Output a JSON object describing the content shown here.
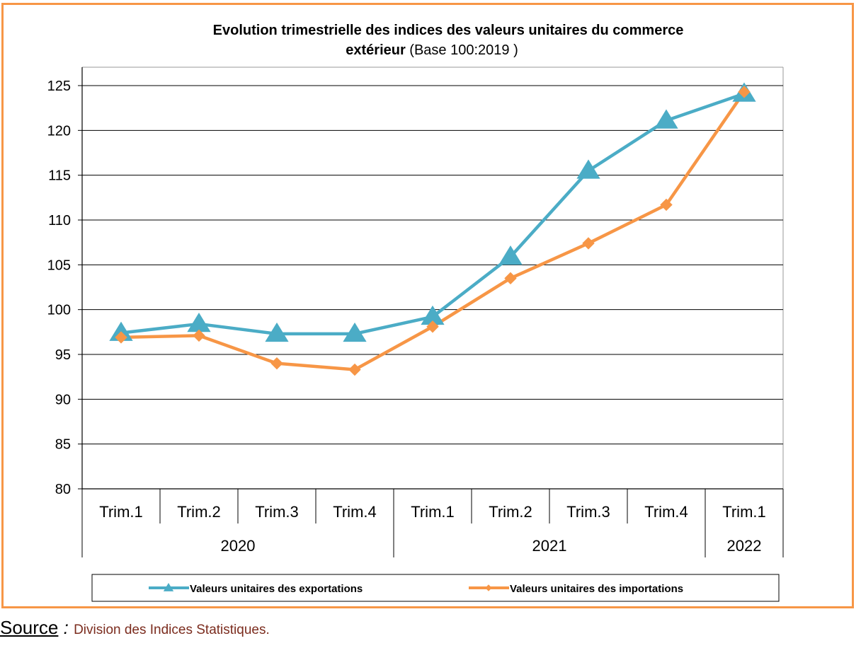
{
  "title": {
    "bold_part": "Evolution trimestrielle des indices des valeurs unitaires  du commerce",
    "line2_bold": "extérieur",
    "line2_normal": "  (Base  100:2019 )"
  },
  "source": {
    "label": "Source",
    "separator": " : ",
    "text": "Division des Indices Statistiques."
  },
  "chart_data": {
    "type": "line",
    "categories": [
      "Trim.1",
      "Trim.2",
      "Trim.3",
      "Trim.4",
      "Trim.1",
      "Trim.2",
      "Trim.3",
      "Trim.4",
      "Trim.1"
    ],
    "year_groups": [
      {
        "label": "2020",
        "count": 4
      },
      {
        "label": "2021",
        "count": 4
      },
      {
        "label": "2022",
        "count": 1
      }
    ],
    "ylim": [
      80,
      125
    ],
    "yticks": [
      80,
      85,
      90,
      95,
      100,
      105,
      110,
      115,
      120,
      125
    ],
    "grid": true,
    "legend_position": "bottom",
    "series": [
      {
        "name": "Valeurs unitaires des exportations",
        "color": "#4BACC6",
        "marker": "triangle",
        "values": [
          97.4,
          98.4,
          97.3,
          97.3,
          99.2,
          105.9,
          115.5,
          121.1,
          124.1
        ]
      },
      {
        "name": "Valeurs unitaires des importations",
        "color": "#F79646",
        "marker": "diamond",
        "values": [
          96.9,
          97.1,
          94.0,
          93.3,
          98.1,
          103.5,
          107.4,
          111.7,
          124.3
        ]
      }
    ]
  }
}
